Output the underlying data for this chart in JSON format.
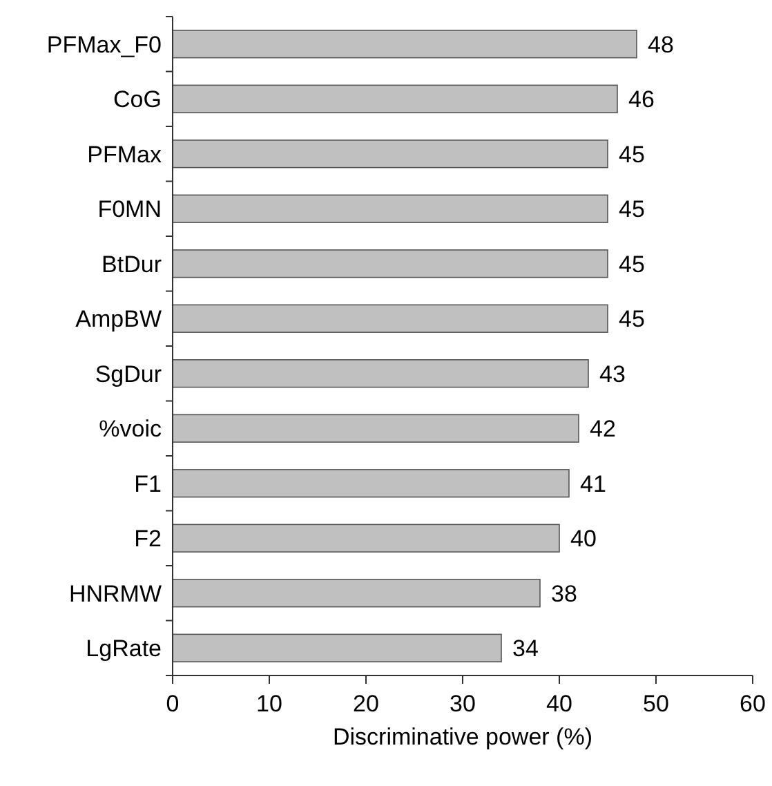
{
  "chart_data": {
    "type": "bar",
    "orientation": "horizontal",
    "xlabel": "Discriminative power (%)",
    "categories": [
      "PFMax_F0",
      "CoG",
      "PFMax",
      "F0MN",
      "BtDur",
      "AmpBW",
      "SgDur",
      "%voic",
      "F1",
      "F2",
      "HNRMW",
      "LgRate"
    ],
    "values": [
      48,
      46,
      45,
      45,
      45,
      45,
      43,
      42,
      41,
      40,
      38,
      34
    ],
    "color": "#c0c0c0",
    "xlim": [
      0,
      60
    ],
    "xticks": [
      0,
      10,
      20,
      30,
      40,
      50,
      60
    ],
    "grid": false,
    "data_labels": true
  }
}
